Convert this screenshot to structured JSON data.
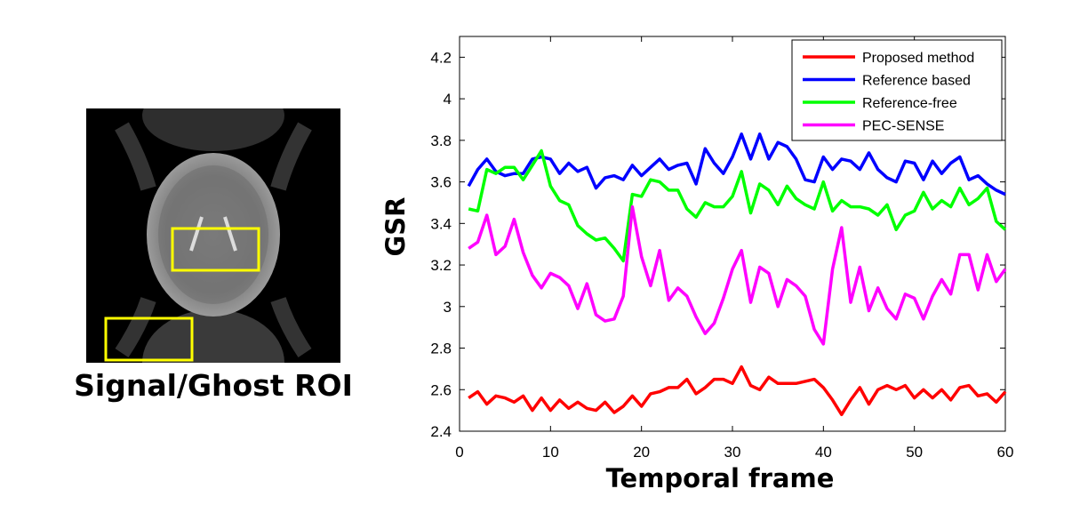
{
  "figure": {
    "roi_caption": "Signal/Ghost ROI",
    "roi_box_color": "#ffff00"
  },
  "chart_data": {
    "type": "line",
    "title": "",
    "xlabel": "Temporal frame",
    "ylabel": "GSR",
    "xlim": [
      0,
      60
    ],
    "ylim": [
      2.4,
      4.3
    ],
    "xticks": [
      0,
      10,
      20,
      30,
      40,
      50,
      60
    ],
    "yticks": [
      2.4,
      2.6,
      2.8,
      3,
      3.2,
      3.4,
      3.6,
      3.8,
      4,
      4.2
    ],
    "ytick_labels": [
      "2.4",
      "2.6",
      "2.8",
      "3",
      "3.2",
      "3.4",
      "3.6",
      "3.8",
      "4",
      "4.2"
    ],
    "grid": false,
    "legend_position": "top-right",
    "x": [
      1,
      2,
      3,
      4,
      5,
      6,
      7,
      8,
      9,
      10,
      11,
      12,
      13,
      14,
      15,
      16,
      17,
      18,
      19,
      20,
      21,
      22,
      23,
      24,
      25,
      26,
      27,
      28,
      29,
      30,
      31,
      32,
      33,
      34,
      35,
      36,
      37,
      38,
      39,
      40,
      41,
      42,
      43,
      44,
      45,
      46,
      47,
      48,
      49,
      50,
      51,
      52,
      53,
      54,
      55,
      56,
      57,
      58,
      59,
      60
    ],
    "series": [
      {
        "name": "Proposed method",
        "color": "#ff0000",
        "values": [
          2.56,
          2.59,
          2.53,
          2.57,
          2.56,
          2.54,
          2.57,
          2.5,
          2.56,
          2.5,
          2.55,
          2.51,
          2.54,
          2.51,
          2.5,
          2.54,
          2.49,
          2.52,
          2.57,
          2.52,
          2.58,
          2.59,
          2.61,
          2.61,
          2.65,
          2.58,
          2.61,
          2.65,
          2.65,
          2.63,
          2.71,
          2.62,
          2.6,
          2.66,
          2.63,
          2.63,
          2.63,
          2.64,
          2.65,
          2.61,
          2.55,
          2.48,
          2.55,
          2.61,
          2.53,
          2.6,
          2.62,
          2.6,
          2.62,
          2.56,
          2.6,
          2.56,
          2.6,
          2.55,
          2.61,
          2.62,
          2.57,
          2.58,
          2.54,
          2.59
        ]
      },
      {
        "name": "Reference based",
        "color": "#0000ff",
        "values": [
          3.58,
          3.66,
          3.71,
          3.65,
          3.63,
          3.64,
          3.64,
          3.71,
          3.72,
          3.71,
          3.64,
          3.69,
          3.65,
          3.67,
          3.57,
          3.62,
          3.63,
          3.61,
          3.68,
          3.63,
          3.67,
          3.71,
          3.66,
          3.68,
          3.69,
          3.59,
          3.76,
          3.69,
          3.64,
          3.72,
          3.83,
          3.71,
          3.83,
          3.71,
          3.79,
          3.77,
          3.71,
          3.61,
          3.6,
          3.72,
          3.66,
          3.71,
          3.7,
          3.66,
          3.74,
          3.66,
          3.62,
          3.6,
          3.7,
          3.69,
          3.61,
          3.7,
          3.64,
          3.69,
          3.72,
          3.61,
          3.63,
          3.59,
          3.56,
          3.54
        ]
      },
      {
        "name": "Reference-free",
        "color": "#00ff00",
        "values": [
          3.47,
          3.46,
          3.66,
          3.64,
          3.67,
          3.67,
          3.61,
          3.68,
          3.75,
          3.58,
          3.51,
          3.49,
          3.39,
          3.35,
          3.32,
          3.33,
          3.28,
          3.22,
          3.54,
          3.53,
          3.61,
          3.6,
          3.56,
          3.56,
          3.47,
          3.43,
          3.5,
          3.48,
          3.48,
          3.53,
          3.65,
          3.45,
          3.59,
          3.56,
          3.49,
          3.58,
          3.52,
          3.49,
          3.47,
          3.6,
          3.46,
          3.51,
          3.48,
          3.48,
          3.47,
          3.44,
          3.49,
          3.37,
          3.44,
          3.46,
          3.55,
          3.47,
          3.51,
          3.48,
          3.57,
          3.49,
          3.52,
          3.57,
          3.41,
          3.37
        ]
      },
      {
        "name": "PEC-SENSE",
        "color": "#ff00ff",
        "values": [
          3.28,
          3.31,
          3.44,
          3.25,
          3.29,
          3.42,
          3.26,
          3.15,
          3.09,
          3.16,
          3.14,
          3.1,
          2.99,
          3.11,
          2.96,
          2.93,
          2.94,
          3.05,
          3.48,
          3.24,
          3.1,
          3.27,
          3.03,
          3.09,
          3.05,
          2.95,
          2.87,
          2.92,
          3.04,
          3.18,
          3.27,
          3.02,
          3.19,
          3.16,
          3.0,
          3.13,
          3.1,
          3.05,
          2.89,
          2.82,
          3.18,
          3.38,
          3.02,
          3.19,
          2.98,
          3.09,
          2.99,
          2.94,
          3.06,
          3.04,
          2.94,
          3.05,
          3.13,
          3.06,
          3.25,
          3.25,
          3.08,
          3.25,
          3.12,
          3.18
        ]
      }
    ]
  }
}
